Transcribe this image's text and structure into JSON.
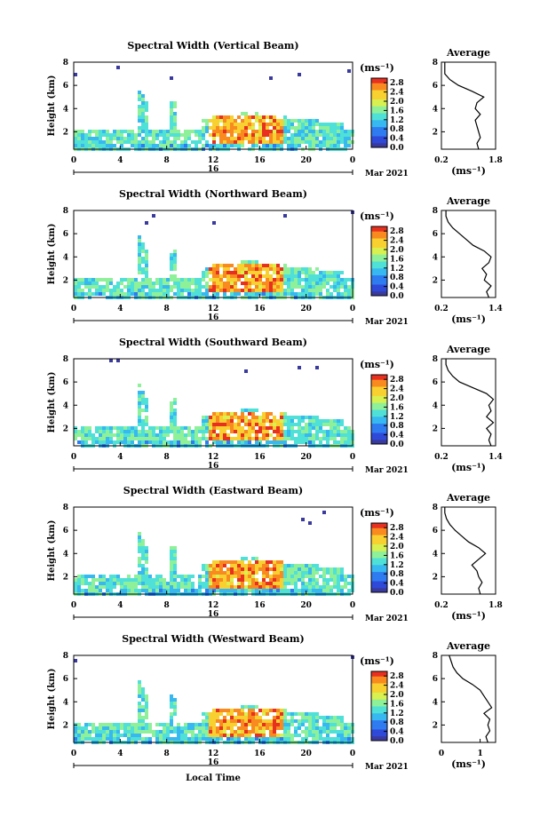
{
  "figure": {
    "footer_xlabel": "Local Time"
  },
  "panels": [
    {
      "title": "Spectral Width (Vertical Beam)",
      "ylabel": "Height (km)",
      "date": "Mar 2021",
      "day_label": "16",
      "unit_label": "(ms⁻¹)",
      "avg_title": "Average",
      "avg_xticks": [
        "0.2",
        "1.8"
      ],
      "avg_xrange": [
        0.2,
        1.8
      ],
      "avg_unit": "(ms⁻¹)"
    },
    {
      "title": "Spectral Width (Northward Beam)",
      "ylabel": "Height (km)",
      "date": "Mar 2021",
      "day_label": "16",
      "unit_label": "(ms⁻¹)",
      "avg_title": "Average",
      "avg_xticks": [
        "0.2",
        "1.4"
      ],
      "avg_xrange": [
        0.2,
        1.4
      ],
      "avg_unit": "(ms⁻¹)"
    },
    {
      "title": "Spectral Width (Southward Beam)",
      "ylabel": "Height (km)",
      "date": "Mar 2021",
      "day_label": "16",
      "unit_label": "(ms⁻¹)",
      "avg_title": "Average",
      "avg_xticks": [
        "0.2",
        "1.4"
      ],
      "avg_xrange": [
        0.2,
        1.4
      ],
      "avg_unit": "(ms⁻¹)"
    },
    {
      "title": "Spectral Width (Eastward Beam)",
      "ylabel": "Height (km)",
      "date": "Mar 2021",
      "day_label": "16",
      "unit_label": "(ms⁻¹)",
      "avg_title": "Average",
      "avg_xticks": [
        "0.2",
        "1.8"
      ],
      "avg_xrange": [
        0.2,
        1.8
      ],
      "avg_unit": "(ms⁻¹)"
    },
    {
      "title": "Spectral Width (Westward Beam)",
      "ylabel": "Height (km)",
      "date": "Mar 2021",
      "day_label": "16",
      "unit_label": "(ms⁻¹)",
      "avg_title": "Average",
      "avg_xticks": [
        "0",
        "1"
      ],
      "avg_xrange": [
        0,
        1.4
      ],
      "avg_unit": "(ms⁻¹)"
    }
  ],
  "chart_data": {
    "type": "heatmap",
    "x_ticks": [
      "0",
      "4",
      "8",
      "12",
      "16",
      "20",
      "0"
    ],
    "xlim_hours": [
      0,
      24
    ],
    "y_ticks": [
      "2",
      "4",
      "6",
      "8"
    ],
    "ylim_km": [
      0.5,
      8
    ],
    "colorbar_ticks": [
      "0.0",
      "0.4",
      "0.8",
      "1.2",
      "1.6",
      "2.0",
      "2.4",
      "2.8"
    ],
    "colorbar_range": [
      0,
      3.0
    ],
    "colormap": [
      "#3a3a9e",
      "#2f49d8",
      "#2f7bf0",
      "#37b8f0",
      "#4fe0d8",
      "#8ff09a",
      "#d8f050",
      "#f8d030",
      "#f88a20",
      "#e83020"
    ],
    "avg_y_ticks": [
      "2",
      "4",
      "6",
      "8"
    ],
    "avg_profiles": [
      {
        "height": [
          0.5,
          1.0,
          1.5,
          2.0,
          2.5,
          3.0,
          3.5,
          4.0,
          4.5,
          5.0,
          5.5,
          6.0,
          6.5,
          7.0,
          7.5,
          8.0
        ],
        "width": [
          1.3,
          1.25,
          1.35,
          1.3,
          1.25,
          1.2,
          1.35,
          1.2,
          1.25,
          1.45,
          1.1,
          0.7,
          0.45,
          0.3,
          0.3,
          0.3
        ]
      },
      {
        "height": [
          0.5,
          1.0,
          1.5,
          2.0,
          2.5,
          3.0,
          3.5,
          4.0,
          4.5,
          5.0,
          5.5,
          6.0,
          6.5,
          7.0,
          7.5,
          8.0
        ],
        "width": [
          1.25,
          1.2,
          1.3,
          1.15,
          1.2,
          1.1,
          1.25,
          1.3,
          1.15,
          0.9,
          0.75,
          0.6,
          0.45,
          0.35,
          0.3,
          0.3
        ]
      },
      {
        "height": [
          0.5,
          1.0,
          1.5,
          2.0,
          2.5,
          3.0,
          3.5,
          4.0,
          4.5,
          5.0,
          5.5,
          6.0,
          6.5,
          7.0,
          7.5,
          8.0
        ],
        "width": [
          1.3,
          1.25,
          1.3,
          1.2,
          1.35,
          1.2,
          1.3,
          1.25,
          1.35,
          1.2,
          0.9,
          0.6,
          0.45,
          0.35,
          0.3,
          0.3
        ]
      },
      {
        "height": [
          0.5,
          1.0,
          1.5,
          2.0,
          2.5,
          3.0,
          3.5,
          4.0,
          4.5,
          5.0,
          5.5,
          6.0,
          6.5,
          7.0,
          7.5,
          8.0
        ],
        "width": [
          1.35,
          1.3,
          1.4,
          1.3,
          1.25,
          1.1,
          1.3,
          1.5,
          1.3,
          1.0,
          0.8,
          0.6,
          0.45,
          0.35,
          0.3,
          0.3
        ]
      },
      {
        "height": [
          0.5,
          1.0,
          1.5,
          2.0,
          2.5,
          3.0,
          3.5,
          4.0,
          4.5,
          5.0,
          5.5,
          6.0,
          6.5,
          7.0,
          7.5,
          8.0
        ],
        "width": [
          1.2,
          1.15,
          1.25,
          1.2,
          1.25,
          1.1,
          1.3,
          1.2,
          1.1,
          1.0,
          0.8,
          0.55,
          0.4,
          0.3,
          0.25,
          0.2
        ]
      }
    ]
  }
}
